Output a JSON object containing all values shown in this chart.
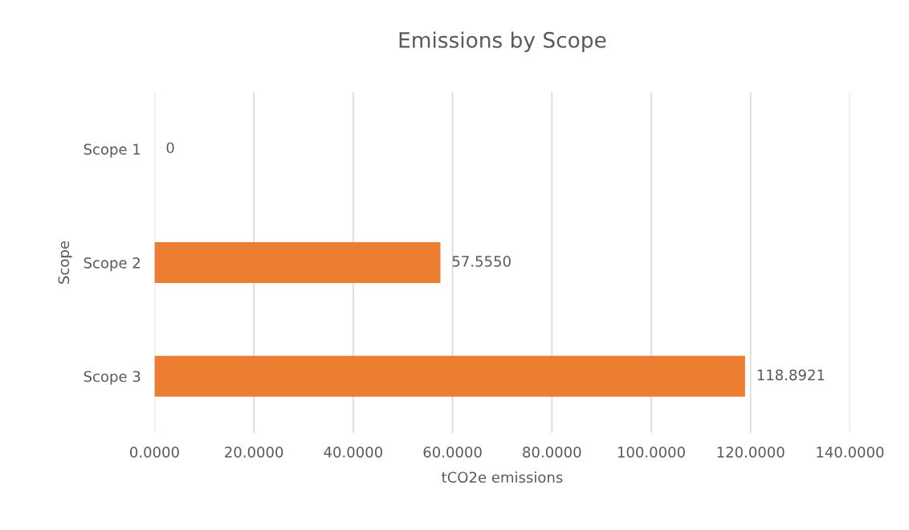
{
  "chart_data": {
    "type": "bar",
    "orientation": "horizontal",
    "title": "Emissions by Scope",
    "xlabel": "tCO2e emissions",
    "ylabel": "Scope",
    "categories": [
      "Scope 1",
      "Scope 2",
      "Scope 3"
    ],
    "values": [
      0,
      57.555,
      118.8921
    ],
    "value_labels": [
      "0",
      "57.5550",
      "118.8921"
    ],
    "color": "#ed7d31",
    "xlim": [
      0,
      140
    ],
    "xticks": [
      {
        "value": 0,
        "label": "0.0000"
      },
      {
        "value": 20,
        "label": "20.0000"
      },
      {
        "value": 40,
        "label": "40.0000"
      },
      {
        "value": 60,
        "label": "60.0000"
      },
      {
        "value": 80,
        "label": "80.0000"
      },
      {
        "value": 100,
        "label": "100.0000"
      },
      {
        "value": 120,
        "label": "120.0000"
      },
      {
        "value": 140,
        "label": "140.0000"
      }
    ],
    "grid": "x",
    "legend": false
  }
}
